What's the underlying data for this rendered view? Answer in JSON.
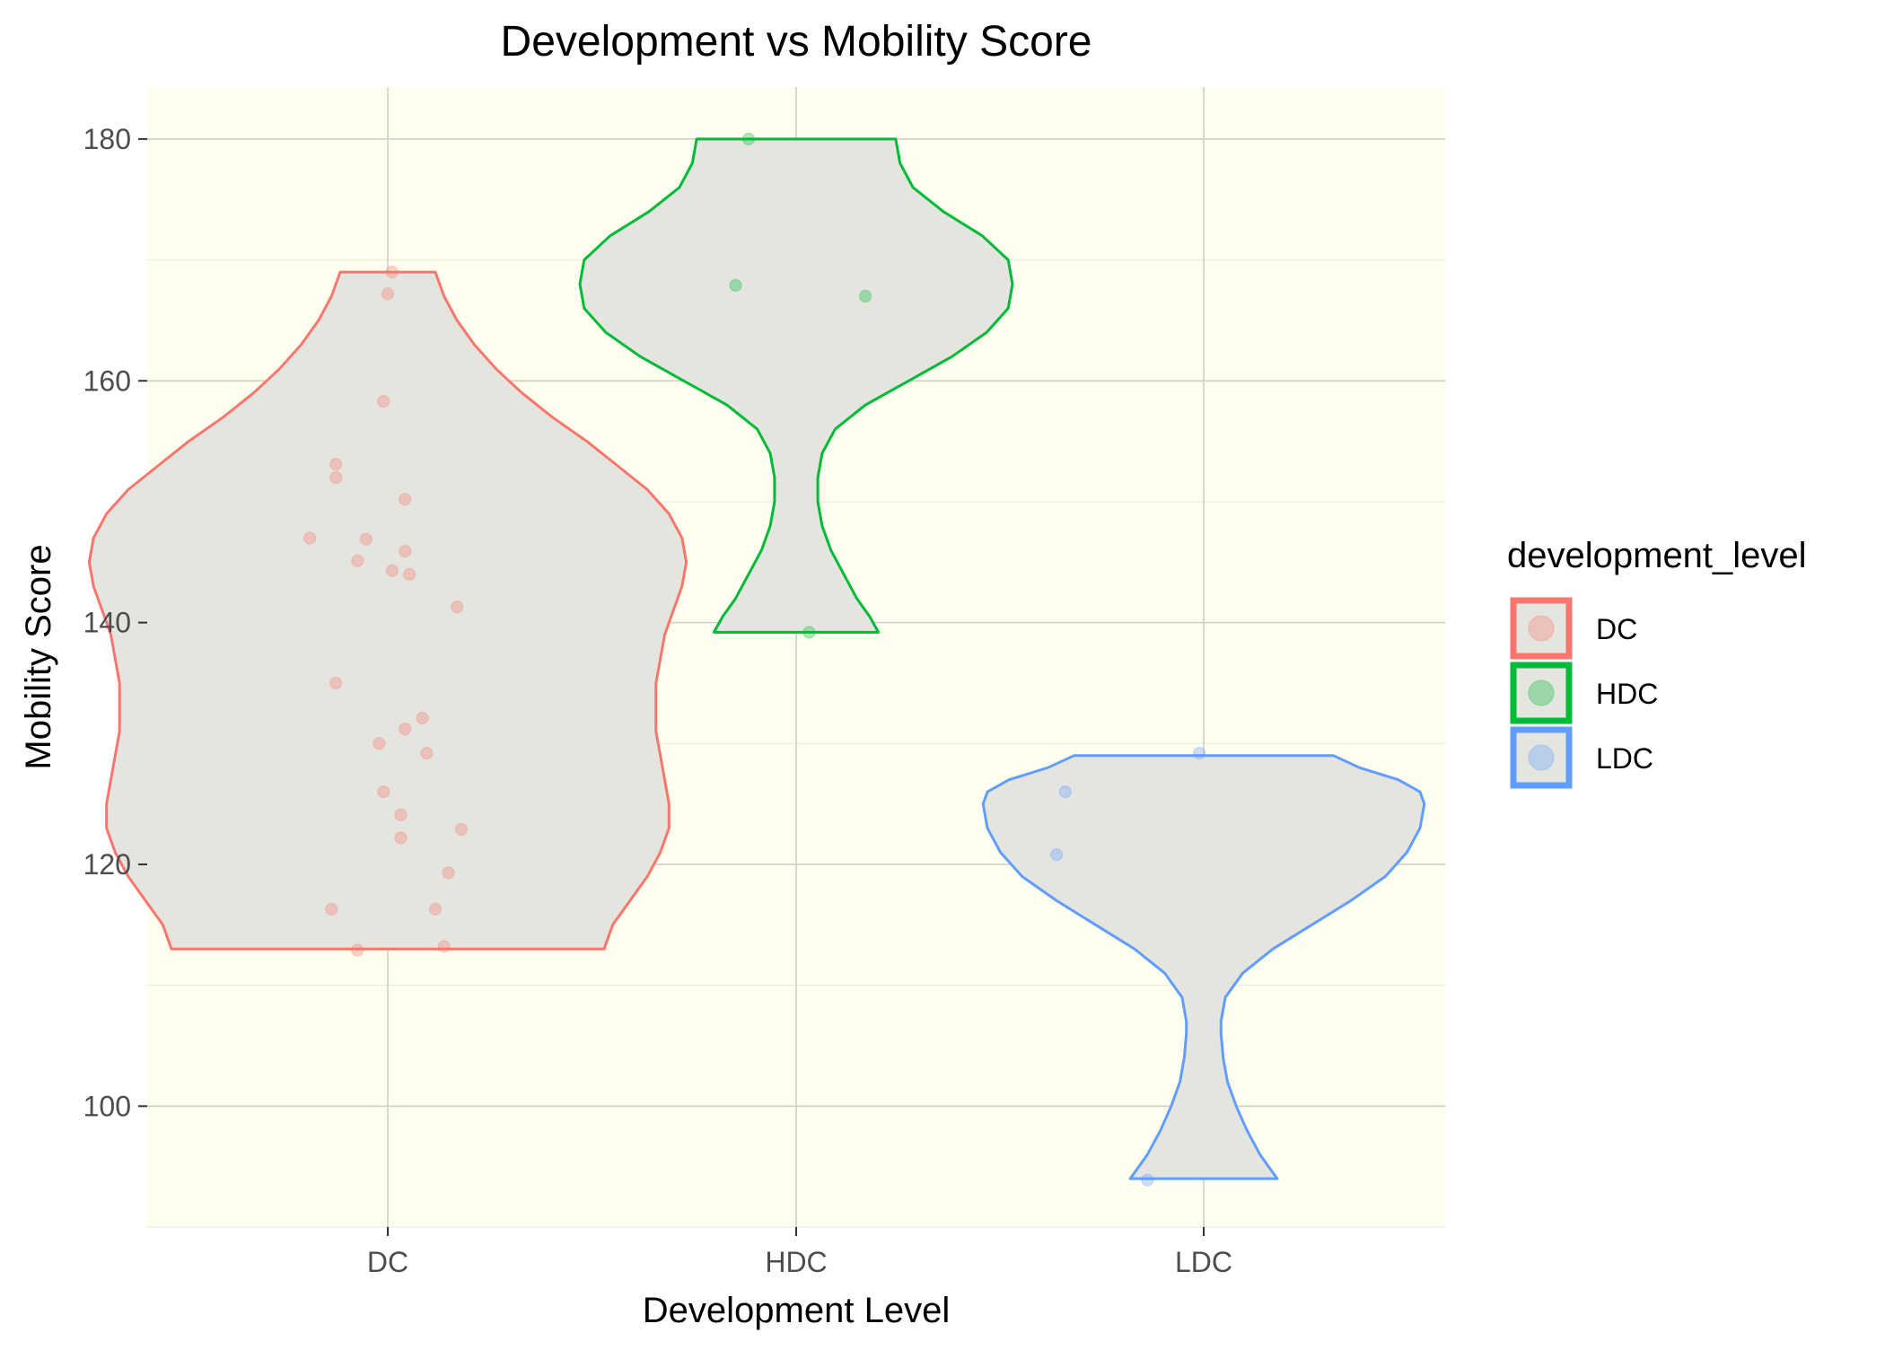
{
  "chart_data": {
    "type": "violin",
    "title": "Development vs  Mobility Score",
    "xlabel": "Development Level",
    "ylabel": "Mobility Score",
    "categories": [
      "DC",
      "HDC",
      "LDC"
    ],
    "y_ticks": [
      100,
      120,
      140,
      160,
      180
    ],
    "y_tick_labels": [
      "100",
      "120",
      "140",
      "160",
      "180"
    ],
    "ylim": [
      90,
      184.3
    ],
    "grid": true,
    "legend": {
      "title": "development_level",
      "position": "right",
      "entries": [
        {
          "label": "DC",
          "color": "#F8766D"
        },
        {
          "label": "HDC",
          "color": "#00BA38"
        },
        {
          "label": "LDC",
          "color": "#619CFF"
        }
      ]
    },
    "colors": {
      "panel_background": "#FFFFF0",
      "violin_fill": "#E5E5E0",
      "grid": "#CFCFC6"
    },
    "series": [
      {
        "category": "DC",
        "color": "#F8766D",
        "y_min": 113,
        "y_max": 169,
        "violin_profile": [
          [
            113,
            0.5
          ],
          [
            115,
            0.52
          ],
          [
            117,
            0.56
          ],
          [
            119,
            0.6
          ],
          [
            121,
            0.63
          ],
          [
            123,
            0.65
          ],
          [
            125,
            0.65
          ],
          [
            127,
            0.64
          ],
          [
            129,
            0.63
          ],
          [
            131,
            0.62
          ],
          [
            133,
            0.62
          ],
          [
            135,
            0.62
          ],
          [
            137,
            0.63
          ],
          [
            139,
            0.64
          ],
          [
            141,
            0.66
          ],
          [
            143,
            0.68
          ],
          [
            145,
            0.69
          ],
          [
            147,
            0.68
          ],
          [
            149,
            0.65
          ],
          [
            151,
            0.6
          ],
          [
            153,
            0.53
          ],
          [
            155,
            0.46
          ],
          [
            157,
            0.38
          ],
          [
            159,
            0.31
          ],
          [
            161,
            0.25
          ],
          [
            163,
            0.2
          ],
          [
            165,
            0.16
          ],
          [
            167,
            0.13
          ],
          [
            169,
            0.11
          ]
        ],
        "points": [
          {
            "x": 0.01,
            "y": 169
          },
          {
            "x": 0.0,
            "y": 167.2
          },
          {
            "x": -0.01,
            "y": 158.3
          },
          {
            "x": -0.12,
            "y": 153.1
          },
          {
            "x": -0.12,
            "y": 152
          },
          {
            "x": 0.04,
            "y": 150.2
          },
          {
            "x": -0.18,
            "y": 147
          },
          {
            "x": -0.05,
            "y": 146.9
          },
          {
            "x": 0.04,
            "y": 145.9
          },
          {
            "x": -0.07,
            "y": 145.1
          },
          {
            "x": 0.01,
            "y": 144.3
          },
          {
            "x": 0.05,
            "y": 144
          },
          {
            "x": 0.16,
            "y": 141.3
          },
          {
            "x": -0.12,
            "y": 135
          },
          {
            "x": 0.08,
            "y": 132.1
          },
          {
            "x": 0.04,
            "y": 131.2
          },
          {
            "x": -0.02,
            "y": 130
          },
          {
            "x": 0.09,
            "y": 129.2
          },
          {
            "x": -0.01,
            "y": 126
          },
          {
            "x": 0.03,
            "y": 124.1
          },
          {
            "x": 0.17,
            "y": 122.9
          },
          {
            "x": 0.03,
            "y": 122.2
          },
          {
            "x": 0.14,
            "y": 119.3
          },
          {
            "x": -0.13,
            "y": 116.3
          },
          {
            "x": 0.11,
            "y": 116.3
          },
          {
            "x": 0.13,
            "y": 113.2
          },
          {
            "x": -0.07,
            "y": 112.9
          }
        ]
      },
      {
        "category": "HDC",
        "color": "#00BA38",
        "y_min": 139.2,
        "y_max": 180,
        "violin_profile": [
          [
            139.2,
            0.19
          ],
          [
            140.5,
            0.17
          ],
          [
            142,
            0.14
          ],
          [
            144,
            0.11
          ],
          [
            146,
            0.08
          ],
          [
            148,
            0.06
          ],
          [
            150,
            0.05
          ],
          [
            152,
            0.05
          ],
          [
            154,
            0.06
          ],
          [
            156,
            0.09
          ],
          [
            158,
            0.16
          ],
          [
            160,
            0.26
          ],
          [
            162,
            0.36
          ],
          [
            164,
            0.44
          ],
          [
            166,
            0.49
          ],
          [
            168,
            0.5
          ],
          [
            170,
            0.49
          ],
          [
            172,
            0.43
          ],
          [
            174,
            0.34
          ],
          [
            176,
            0.27
          ],
          [
            178,
            0.24
          ],
          [
            180,
            0.23
          ]
        ],
        "points": [
          {
            "x": -0.11,
            "y": 180
          },
          {
            "x": -0.14,
            "y": 167.9
          },
          {
            "x": 0.16,
            "y": 167
          },
          {
            "x": 0.03,
            "y": 139.2
          }
        ]
      },
      {
        "category": "LDC",
        "color": "#619CFF",
        "y_min": 94,
        "y_max": 129,
        "violin_profile": [
          [
            94,
            0.17
          ],
          [
            95,
            0.15
          ],
          [
            96,
            0.13
          ],
          [
            98,
            0.1
          ],
          [
            100,
            0.075
          ],
          [
            102,
            0.055
          ],
          [
            104,
            0.045
          ],
          [
            106,
            0.04
          ],
          [
            107,
            0.04
          ],
          [
            109,
            0.05
          ],
          [
            111,
            0.09
          ],
          [
            113,
            0.16
          ],
          [
            115,
            0.25
          ],
          [
            117,
            0.34
          ],
          [
            119,
            0.42
          ],
          [
            121,
            0.47
          ],
          [
            123,
            0.5
          ],
          [
            125,
            0.51
          ],
          [
            126,
            0.5
          ],
          [
            127,
            0.45
          ],
          [
            128,
            0.36
          ],
          [
            129,
            0.3
          ]
        ],
        "points": [
          {
            "x": -0.01,
            "y": 129.2
          },
          {
            "x": -0.32,
            "y": 126
          },
          {
            "x": -0.34,
            "y": 120.8
          },
          {
            "x": -0.13,
            "y": 93.9
          }
        ]
      }
    ]
  }
}
